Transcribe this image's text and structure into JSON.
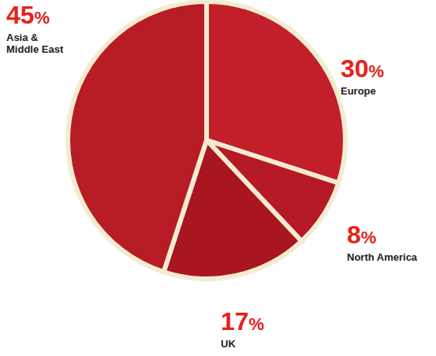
{
  "chart_data": {
    "type": "pie",
    "categories": [
      "Europe",
      "North America",
      "UK",
      "Asia & Middle East"
    ],
    "values": [
      30,
      8,
      17,
      45
    ],
    "value_labels": [
      "30%",
      "8%",
      "17%",
      "45%"
    ],
    "colors": [
      "#c21f2b",
      "#b51a25",
      "#a9161f",
      "#b81c24"
    ],
    "data_labels": true
  }
}
